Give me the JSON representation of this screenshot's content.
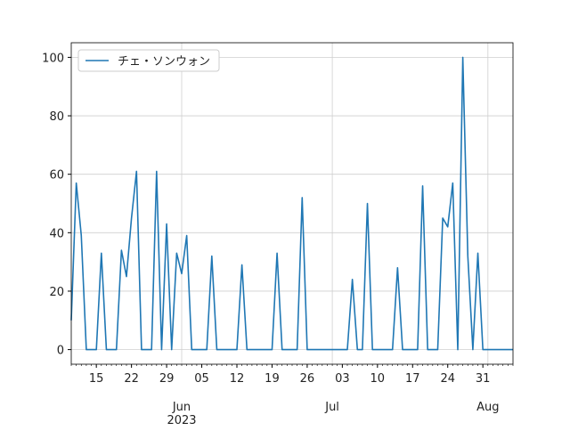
{
  "chart_data": {
    "type": "line",
    "x": [
      "2023-05-10",
      "2023-05-11",
      "2023-05-12",
      "2023-05-13",
      "2023-05-14",
      "2023-05-15",
      "2023-05-16",
      "2023-05-17",
      "2023-05-18",
      "2023-05-19",
      "2023-05-20",
      "2023-05-21",
      "2023-05-22",
      "2023-05-23",
      "2023-05-24",
      "2023-05-25",
      "2023-05-26",
      "2023-05-27",
      "2023-05-28",
      "2023-05-29",
      "2023-05-30",
      "2023-05-31",
      "2023-06-01",
      "2023-06-02",
      "2023-06-03",
      "2023-06-04",
      "2023-06-05",
      "2023-06-06",
      "2023-06-07",
      "2023-06-08",
      "2023-06-09",
      "2023-06-10",
      "2023-06-11",
      "2023-06-12",
      "2023-06-13",
      "2023-06-14",
      "2023-06-15",
      "2023-06-16",
      "2023-06-17",
      "2023-06-18",
      "2023-06-19",
      "2023-06-20",
      "2023-06-21",
      "2023-06-22",
      "2023-06-23",
      "2023-06-24",
      "2023-06-25",
      "2023-06-26",
      "2023-06-27",
      "2023-06-28",
      "2023-06-29",
      "2023-06-30",
      "2023-07-01",
      "2023-07-02",
      "2023-07-03",
      "2023-07-04",
      "2023-07-05",
      "2023-07-06",
      "2023-07-07",
      "2023-07-08",
      "2023-07-09",
      "2023-07-10",
      "2023-07-11",
      "2023-07-12",
      "2023-07-13",
      "2023-07-14",
      "2023-07-15",
      "2023-07-16",
      "2023-07-17",
      "2023-07-18",
      "2023-07-19",
      "2023-07-20",
      "2023-07-21",
      "2023-07-22",
      "2023-07-23",
      "2023-07-24",
      "2023-07-25",
      "2023-07-26",
      "2023-07-27",
      "2023-07-28",
      "2023-07-29",
      "2023-07-30",
      "2023-07-31",
      "2023-08-01",
      "2023-08-02",
      "2023-08-03",
      "2023-08-04",
      "2023-08-05",
      "2023-08-06"
    ],
    "series": [
      {
        "name": "チェ・ソンウォン",
        "color": "#1f77b4",
        "values": [
          10,
          57,
          39,
          0,
          0,
          0,
          33,
          0,
          0,
          0,
          34,
          25,
          45,
          61,
          0,
          0,
          0,
          61,
          0,
          43,
          0,
          33,
          26,
          39,
          0,
          0,
          0,
          0,
          32,
          0,
          0,
          0,
          0,
          0,
          29,
          0,
          0,
          0,
          0,
          0,
          0,
          33,
          0,
          0,
          0,
          0,
          52,
          0,
          0,
          0,
          0,
          0,
          0,
          0,
          0,
          0,
          24,
          0,
          0,
          50,
          0,
          0,
          0,
          0,
          0,
          28,
          0,
          0,
          0,
          0,
          56,
          0,
          0,
          0,
          45,
          42,
          57,
          0,
          100,
          32,
          0,
          33,
          0,
          0,
          0,
          0,
          0,
          0,
          0
        ]
      }
    ],
    "xlim": [
      "2023-05-10",
      "2023-08-06"
    ],
    "xticks": [
      {
        "value": "2023-05-15",
        "label": "15"
      },
      {
        "value": "2023-05-22",
        "label": "22"
      },
      {
        "value": "2023-05-29",
        "label": "29"
      },
      {
        "value": "2023-06-05",
        "label": "05"
      },
      {
        "value": "2023-06-12",
        "label": "12"
      },
      {
        "value": "2023-06-19",
        "label": "19"
      },
      {
        "value": "2023-06-26",
        "label": "26"
      },
      {
        "value": "2023-07-03",
        "label": "03"
      },
      {
        "value": "2023-07-10",
        "label": "10"
      },
      {
        "value": "2023-07-17",
        "label": "17"
      },
      {
        "value": "2023-07-24",
        "label": "24"
      },
      {
        "value": "2023-07-31",
        "label": "31"
      }
    ],
    "xticks2": [
      {
        "value": "2023-06-01",
        "label": "Jun"
      },
      {
        "value": "2023-07-01",
        "label": "Jul"
      },
      {
        "value": "2023-08-01",
        "label": "Aug"
      }
    ],
    "year": "2023",
    "ylim": [
      -5,
      105
    ],
    "yticks": [
      0,
      20,
      40,
      60,
      80,
      100
    ],
    "grid": true,
    "legend": "upper left"
  }
}
